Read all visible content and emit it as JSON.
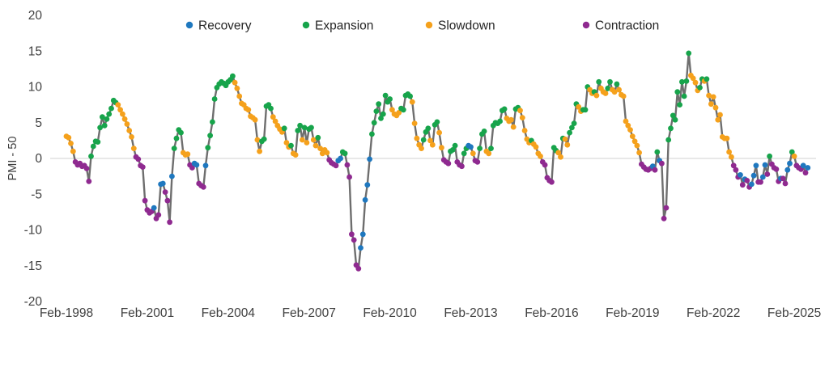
{
  "chart_data": {
    "type": "line",
    "title": "",
    "xlabel": "",
    "ylabel": "PMI - 50",
    "frequency": "monthly",
    "start_month": "Feb-1998",
    "end_month": "Aug-2025",
    "ylim": [
      -20,
      20
    ],
    "grid": "zero-line-only",
    "legend_position": "top-center",
    "y_ticks": [
      20,
      15,
      10,
      5,
      0,
      -5,
      -10,
      -15,
      -20
    ],
    "x_tick_labels": [
      "Feb-1998",
      "Feb-2001",
      "Feb-2004",
      "Feb-2007",
      "Feb-2010",
      "Feb-2013",
      "Feb-2016",
      "Feb-2019",
      "Feb-2022",
      "Feb-2025"
    ],
    "x_tick_month_indexes": [
      0,
      36,
      72,
      108,
      144,
      180,
      216,
      252,
      288,
      324
    ],
    "legend": [
      {
        "key": "R",
        "label": "Recovery",
        "color": "#1f78bf"
      },
      {
        "key": "E",
        "label": "Expansion",
        "color": "#17a44b"
      },
      {
        "key": "S",
        "label": "Slowdown",
        "color": "#f5a11c"
      },
      {
        "key": "C",
        "label": "Contraction",
        "color": "#8f2a90"
      }
    ],
    "line_color": "#6e6e6e",
    "zero_line_color": "#d9d9d9",
    "axis_text_color": "#404040",
    "legend_text_color": "#262626",
    "series_name": "PMI - 50 by phase",
    "points_format": "[value, phase] monthly starting Feb-1998; phase R=Recovery E=Expansion S=Slowdown C=Contraction",
    "points": [
      [
        3.1,
        "S"
      ],
      [
        2.9,
        "S"
      ],
      [
        2.1,
        "S"
      ],
      [
        1,
        "S"
      ],
      [
        -0.5,
        "C"
      ],
      [
        -0.9,
        "C"
      ],
      [
        -0.7,
        "C"
      ],
      [
        -1.1,
        "C"
      ],
      [
        -1,
        "C"
      ],
      [
        -1.4,
        "C"
      ],
      [
        -3.2,
        "C"
      ],
      [
        0.3,
        "E"
      ],
      [
        1.7,
        "E"
      ],
      [
        2.4,
        "E"
      ],
      [
        2.3,
        "E"
      ],
      [
        4.3,
        "E"
      ],
      [
        5.8,
        "E"
      ],
      [
        4.6,
        "E"
      ],
      [
        5.5,
        "E"
      ],
      [
        6.2,
        "E"
      ],
      [
        7,
        "E"
      ],
      [
        8.1,
        "E"
      ],
      [
        7.8,
        "E"
      ],
      [
        7.5,
        "S"
      ],
      [
        6.8,
        "S"
      ],
      [
        6.2,
        "S"
      ],
      [
        5.5,
        "S"
      ],
      [
        4.8,
        "S"
      ],
      [
        3.9,
        "S"
      ],
      [
        3,
        "S"
      ],
      [
        1.4,
        "S"
      ],
      [
        0.2,
        "C"
      ],
      [
        -0.1,
        "C"
      ],
      [
        -1,
        "C"
      ],
      [
        -1.2,
        "C"
      ],
      [
        -5.9,
        "C"
      ],
      [
        -7.2,
        "C"
      ],
      [
        -7.6,
        "C"
      ],
      [
        -7.4,
        "C"
      ],
      [
        -6.9,
        "R"
      ],
      [
        -8.4,
        "C"
      ],
      [
        -7.9,
        "C"
      ],
      [
        -3.6,
        "R"
      ],
      [
        -3.5,
        "R"
      ],
      [
        -4.7,
        "C"
      ],
      [
        -5.9,
        "C"
      ],
      [
        -8.9,
        "C"
      ],
      [
        -2.5,
        "R"
      ],
      [
        1.4,
        "E"
      ],
      [
        2.8,
        "E"
      ],
      [
        4,
        "E"
      ],
      [
        3.6,
        "E"
      ],
      [
        0.8,
        "S"
      ],
      [
        0.5,
        "S"
      ],
      [
        0.6,
        "S"
      ],
      [
        -0.9,
        "C"
      ],
      [
        -1.3,
        "C"
      ],
      [
        -0.7,
        "R"
      ],
      [
        -0.9,
        "R"
      ],
      [
        -3.5,
        "C"
      ],
      [
        -3.8,
        "C"
      ],
      [
        -4,
        "C"
      ],
      [
        -1,
        "R"
      ],
      [
        1.5,
        "E"
      ],
      [
        3.2,
        "E"
      ],
      [
        5.1,
        "E"
      ],
      [
        8.3,
        "E"
      ],
      [
        9.9,
        "E"
      ],
      [
        10.4,
        "E"
      ],
      [
        10.7,
        "E"
      ],
      [
        10.5,
        "E"
      ],
      [
        10.2,
        "E"
      ],
      [
        10.7,
        "E"
      ],
      [
        11,
        "E"
      ],
      [
        11.5,
        "E"
      ],
      [
        10.6,
        "S"
      ],
      [
        9.8,
        "S"
      ],
      [
        8.7,
        "S"
      ],
      [
        7.7,
        "S"
      ],
      [
        7.5,
        "S"
      ],
      [
        7,
        "S"
      ],
      [
        6.8,
        "S"
      ],
      [
        5.9,
        "S"
      ],
      [
        5.7,
        "S"
      ],
      [
        5.4,
        "S"
      ],
      [
        2.6,
        "S"
      ],
      [
        1,
        "S"
      ],
      [
        2.4,
        "E"
      ],
      [
        2.7,
        "E"
      ],
      [
        7.3,
        "E"
      ],
      [
        7.5,
        "E"
      ],
      [
        7,
        "E"
      ],
      [
        5.8,
        "S"
      ],
      [
        5.2,
        "S"
      ],
      [
        4.6,
        "S"
      ],
      [
        4.1,
        "S"
      ],
      [
        3.7,
        "S"
      ],
      [
        4.2,
        "E"
      ],
      [
        2.2,
        "S"
      ],
      [
        1.6,
        "S"
      ],
      [
        1.8,
        "E"
      ],
      [
        0.7,
        "S"
      ],
      [
        0.5,
        "S"
      ],
      [
        3.9,
        "E"
      ],
      [
        4.6,
        "E"
      ],
      [
        2.6,
        "S"
      ],
      [
        4.3,
        "E"
      ],
      [
        2.2,
        "S"
      ],
      [
        4.1,
        "E"
      ],
      [
        4.3,
        "E"
      ],
      [
        2.6,
        "S"
      ],
      [
        1.8,
        "S"
      ],
      [
        2.9,
        "E"
      ],
      [
        1.4,
        "S"
      ],
      [
        0.7,
        "S"
      ],
      [
        1.2,
        "S"
      ],
      [
        0.8,
        "S"
      ],
      [
        -0.2,
        "C"
      ],
      [
        -0.6,
        "C"
      ],
      [
        -0.8,
        "C"
      ],
      [
        -1,
        "C"
      ],
      [
        -0.3,
        "R"
      ],
      [
        0,
        "R"
      ],
      [
        0.9,
        "E"
      ],
      [
        0.7,
        "E"
      ],
      [
        -0.9,
        "C"
      ],
      [
        -2.6,
        "C"
      ],
      [
        -10.6,
        "C"
      ],
      [
        -11.4,
        "C"
      ],
      [
        -14.9,
        "C"
      ],
      [
        -15.4,
        "C"
      ],
      [
        -12.5,
        "R"
      ],
      [
        -10.6,
        "R"
      ],
      [
        -5.8,
        "R"
      ],
      [
        -3.7,
        "R"
      ],
      [
        -0.1,
        "R"
      ],
      [
        3.4,
        "E"
      ],
      [
        5,
        "E"
      ],
      [
        6.6,
        "E"
      ],
      [
        7.6,
        "E"
      ],
      [
        5.6,
        "E"
      ],
      [
        6.2,
        "E"
      ],
      [
        8.8,
        "E"
      ],
      [
        7.9,
        "E"
      ],
      [
        8.3,
        "E"
      ],
      [
        6.8,
        "S"
      ],
      [
        6.2,
        "S"
      ],
      [
        6,
        "S"
      ],
      [
        6.4,
        "S"
      ],
      [
        7,
        "E"
      ],
      [
        6.8,
        "E"
      ],
      [
        8.8,
        "E"
      ],
      [
        9,
        "E"
      ],
      [
        8.7,
        "E"
      ],
      [
        7.9,
        "S"
      ],
      [
        4.9,
        "S"
      ],
      [
        2.8,
        "S"
      ],
      [
        1.9,
        "S"
      ],
      [
        1.4,
        "S"
      ],
      [
        2.6,
        "E"
      ],
      [
        3.7,
        "E"
      ],
      [
        4.2,
        "E"
      ],
      [
        2.5,
        "S"
      ],
      [
        1.9,
        "S"
      ],
      [
        4.7,
        "E"
      ],
      [
        5.1,
        "E"
      ],
      [
        3.6,
        "S"
      ],
      [
        1.5,
        "S"
      ],
      [
        -0.2,
        "C"
      ],
      [
        -0.5,
        "C"
      ],
      [
        -0.7,
        "C"
      ],
      [
        1,
        "E"
      ],
      [
        1.2,
        "E"
      ],
      [
        1.8,
        "E"
      ],
      [
        -0.5,
        "C"
      ],
      [
        -0.9,
        "C"
      ],
      [
        -1.1,
        "C"
      ],
      [
        0.7,
        "E"
      ],
      [
        1.4,
        "E"
      ],
      [
        1.8,
        "R"
      ],
      [
        1.6,
        "R"
      ],
      [
        0.7,
        "S"
      ],
      [
        -0.3,
        "C"
      ],
      [
        -0.5,
        "C"
      ],
      [
        1.4,
        "E"
      ],
      [
        3.4,
        "E"
      ],
      [
        3.8,
        "E"
      ],
      [
        1,
        "S"
      ],
      [
        0.7,
        "S"
      ],
      [
        1.4,
        "E"
      ],
      [
        4.6,
        "E"
      ],
      [
        5,
        "E"
      ],
      [
        4.9,
        "E"
      ],
      [
        5.2,
        "E"
      ],
      [
        6.7,
        "E"
      ],
      [
        6.9,
        "E"
      ],
      [
        5.6,
        "S"
      ],
      [
        5.2,
        "S"
      ],
      [
        5.4,
        "S"
      ],
      [
        4.4,
        "S"
      ],
      [
        6.9,
        "E"
      ],
      [
        7.1,
        "E"
      ],
      [
        6.7,
        "S"
      ],
      [
        5.7,
        "S"
      ],
      [
        3.9,
        "S"
      ],
      [
        2.7,
        "S"
      ],
      [
        2.2,
        "S"
      ],
      [
        2.5,
        "E"
      ],
      [
        2,
        "S"
      ],
      [
        1.6,
        "S"
      ],
      [
        0.7,
        "S"
      ],
      [
        0.3,
        "S"
      ],
      [
        -0.5,
        "C"
      ],
      [
        -0.9,
        "C"
      ],
      [
        -2.7,
        "C"
      ],
      [
        -3.1,
        "C"
      ],
      [
        -3.3,
        "C"
      ],
      [
        1.5,
        "E"
      ],
      [
        1.1,
        "E"
      ],
      [
        0.8,
        "S"
      ],
      [
        0.2,
        "S"
      ],
      [
        2.8,
        "E"
      ],
      [
        2.7,
        "S"
      ],
      [
        1.9,
        "S"
      ],
      [
        3.6,
        "E"
      ],
      [
        4.3,
        "E"
      ],
      [
        4.9,
        "E"
      ],
      [
        7.6,
        "E"
      ],
      [
        7.2,
        "S"
      ],
      [
        6.6,
        "S"
      ],
      [
        6.8,
        "E"
      ],
      [
        6.8,
        "E"
      ],
      [
        10,
        "E"
      ],
      [
        9.6,
        "S"
      ],
      [
        9.1,
        "S"
      ],
      [
        9.3,
        "E"
      ],
      [
        8.8,
        "S"
      ],
      [
        10.7,
        "E"
      ],
      [
        9.8,
        "S"
      ],
      [
        9.3,
        "S"
      ],
      [
        9.1,
        "S"
      ],
      [
        9.8,
        "E"
      ],
      [
        10.7,
        "E"
      ],
      [
        9.6,
        "S"
      ],
      [
        9.3,
        "S"
      ],
      [
        10.4,
        "E"
      ],
      [
        9.6,
        "S"
      ],
      [
        8.9,
        "S"
      ],
      [
        8.7,
        "S"
      ],
      [
        5.2,
        "S"
      ],
      [
        4.6,
        "S"
      ],
      [
        4,
        "S"
      ],
      [
        3.1,
        "S"
      ],
      [
        2.4,
        "S"
      ],
      [
        1.8,
        "S"
      ],
      [
        0.8,
        "S"
      ],
      [
        -0.8,
        "C"
      ],
      [
        -1.2,
        "C"
      ],
      [
        -1.5,
        "C"
      ],
      [
        -1.6,
        "C"
      ],
      [
        -1.4,
        "C"
      ],
      [
        -1.1,
        "R"
      ],
      [
        -1.6,
        "C"
      ],
      [
        0.9,
        "E"
      ],
      [
        -0.3,
        "R"
      ],
      [
        -0.7,
        "C"
      ],
      [
        -8.4,
        "C"
      ],
      [
        -6.9,
        "C"
      ],
      [
        2.6,
        "E"
      ],
      [
        4.2,
        "E"
      ],
      [
        6,
        "E"
      ],
      [
        5.4,
        "E"
      ],
      [
        9.3,
        "E"
      ],
      [
        7.5,
        "E"
      ],
      [
        10.7,
        "E"
      ],
      [
        8.7,
        "E"
      ],
      [
        10.8,
        "E"
      ],
      [
        14.7,
        "E"
      ],
      [
        11.6,
        "S"
      ],
      [
        11.2,
        "S"
      ],
      [
        10.6,
        "S"
      ],
      [
        9.5,
        "S"
      ],
      [
        9.9,
        "E"
      ],
      [
        11.1,
        "E"
      ],
      [
        10.8,
        "S"
      ],
      [
        11.1,
        "E"
      ],
      [
        8.8,
        "S"
      ],
      [
        7.6,
        "S"
      ],
      [
        8.6,
        "S"
      ],
      [
        7.1,
        "S"
      ],
      [
        5.4,
        "S"
      ],
      [
        6.1,
        "S"
      ],
      [
        3,
        "S"
      ],
      [
        2.8,
        "S"
      ],
      [
        2.8,
        "S"
      ],
      [
        0.9,
        "S"
      ],
      [
        0.2,
        "S"
      ],
      [
        -1,
        "C"
      ],
      [
        -1.6,
        "C"
      ],
      [
        -2.6,
        "C"
      ],
      [
        -2.3,
        "R"
      ],
      [
        -3.7,
        "C"
      ],
      [
        -2.9,
        "R"
      ],
      [
        -3.1,
        "C"
      ],
      [
        -4,
        "C"
      ],
      [
        -3.6,
        "R"
      ],
      [
        -2.4,
        "R"
      ],
      [
        -1,
        "R"
      ],
      [
        -3.3,
        "C"
      ],
      [
        -3.3,
        "C"
      ],
      [
        -2.6,
        "R"
      ],
      [
        -0.9,
        "R"
      ],
      [
        -2.2,
        "C"
      ],
      [
        0.3,
        "E"
      ],
      [
        -0.8,
        "C"
      ],
      [
        -1.3,
        "C"
      ],
      [
        -1.5,
        "C"
      ],
      [
        -3.2,
        "C"
      ],
      [
        -2.8,
        "R"
      ],
      [
        -2.8,
        "C"
      ],
      [
        -3.5,
        "C"
      ],
      [
        -1.6,
        "R"
      ],
      [
        -0.7,
        "R"
      ],
      [
        0.9,
        "E"
      ],
      [
        0.3,
        "S"
      ],
      [
        -1,
        "C"
      ],
      [
        -1.3,
        "C"
      ],
      [
        -1.5,
        "C"
      ],
      [
        -1,
        "R"
      ],
      [
        -2,
        "C"
      ],
      [
        -1.3,
        "R"
      ]
    ]
  }
}
